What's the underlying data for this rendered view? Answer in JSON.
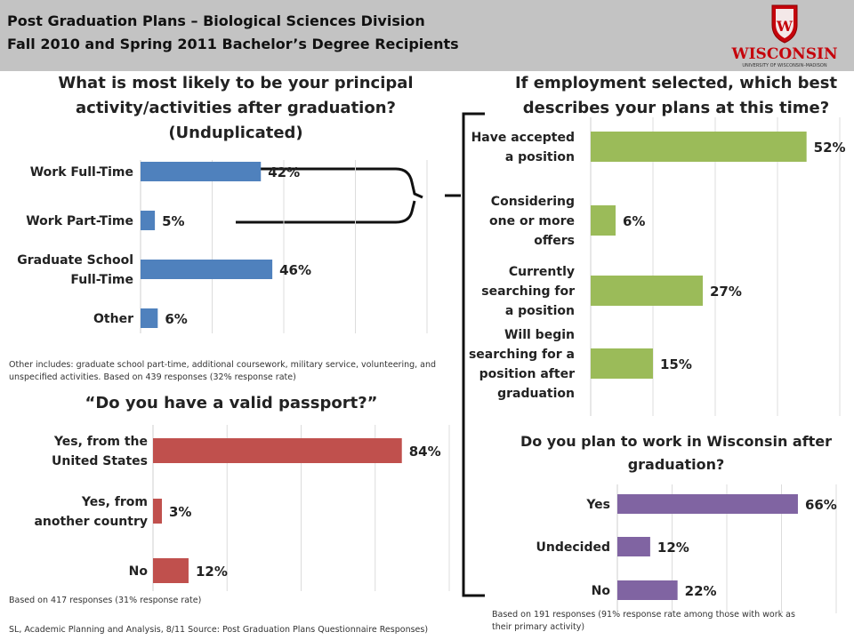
{
  "header": {
    "line1": "Post Graduation Plans – Biological Sciences Division",
    "line2": "Fall 2010 and Spring 2011 Bachelor’s Degree Recipients",
    "logo_text": "WISCONSIN",
    "logo_subtext": "UNIVERSITY OF WISCONSIN–MADISON",
    "logo_crest_letter": "W"
  },
  "colors": {
    "header_bg": "#c3c3c3",
    "crest_red": "#c5050c"
  },
  "notes": {
    "activity_note": "Other includes: graduate school part-time, additional coursework, military service, volunteering, and unspecified activities. Based on 439 responses (32% response rate)",
    "passport_note": "Based on 417 responses (31% response rate)",
    "wisconsin_note": "Based on 191 responses (91% response rate among those with work as their primary activity)",
    "source": "SL, Academic Planning and Analysis, 8/11 Source: Post Graduation Plans Questionnaire Responses)"
  },
  "chart_data": [
    {
      "type": "bar",
      "orientation": "horizontal",
      "title": "What is most likely to be your principal activity/activities after graduation? (Unduplicated)",
      "categories": [
        "Work Full-Time",
        "Work Part-Time",
        "Graduate School Full-Time",
        "Other"
      ],
      "values": [
        42,
        5,
        46,
        6
      ],
      "labels": [
        "42%",
        "5%",
        "46%",
        "6%"
      ],
      "xlim": [
        0,
        100
      ],
      "color": "#4f81bd",
      "grid": true
    },
    {
      "type": "bar",
      "orientation": "horizontal",
      "title": "If employment selected, which best describes your plans at this time?",
      "categories": [
        "Have accepted a position",
        "Considering one or more offers",
        "Currently searching for a position",
        "Will begin searching for a position after graduation"
      ],
      "values": [
        52,
        6,
        27,
        15
      ],
      "labels": [
        "52%",
        "6%",
        "27%",
        "15%"
      ],
      "xlim": [
        0,
        60
      ],
      "color": "#9bbb59",
      "grid": true
    },
    {
      "type": "bar",
      "orientation": "horizontal",
      "title": "“Do you have a valid passport?”",
      "categories": [
        "Yes, from the United States",
        "Yes, from another country",
        "No"
      ],
      "values": [
        84,
        3,
        12
      ],
      "labels": [
        "84%",
        "3%",
        "12%"
      ],
      "xlim": [
        0,
        100
      ],
      "color": "#c0504d",
      "grid": true
    },
    {
      "type": "bar",
      "orientation": "horizontal",
      "title": "Do you plan to work in Wisconsin after graduation?",
      "categories": [
        "Yes",
        "Undecided",
        "No"
      ],
      "values": [
        66,
        12,
        22
      ],
      "labels": [
        "66%",
        "12%",
        "22%"
      ],
      "xlim": [
        0,
        80
      ],
      "color": "#8064a2",
      "grid": true
    }
  ]
}
